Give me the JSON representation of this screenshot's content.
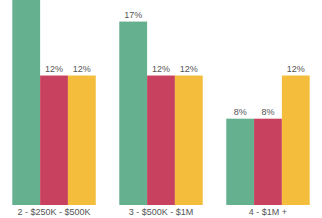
{
  "chart_data": {
    "type": "bar",
    "categories": [
      "2 - $250K - $500K",
      "3 - $500K - $1M",
      "4 - $1M +"
    ],
    "series": [
      {
        "color": "#65b08f",
        "values": [
          19,
          17,
          8
        ],
        "value_labels": [
          null,
          "17%",
          "8%"
        ]
      },
      {
        "color": "#c8425f",
        "values": [
          12,
          12,
          8
        ],
        "value_labels": [
          "12%",
          "12%",
          "8%"
        ]
      },
      {
        "color": "#f4be3c",
        "values": [
          12,
          12,
          12
        ],
        "value_labels": [
          "12%",
          "12%",
          "12%"
        ]
      }
    ],
    "ylim": [
      0,
      19
    ],
    "data_labels": true,
    "tick_labels": "x"
  }
}
